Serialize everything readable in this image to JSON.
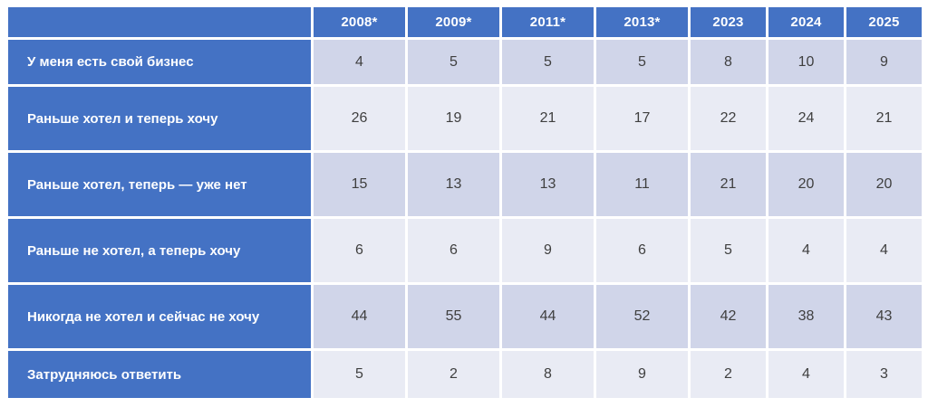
{
  "chart_data": {
    "type": "table",
    "title": "",
    "columns": [
      "2008*",
      "2009*",
      "2011*",
      "2013*",
      "2023",
      "2024",
      "2025"
    ],
    "rows": [
      {
        "label": "У меня есть свой бизнес",
        "values": [
          4,
          5,
          5,
          5,
          8,
          10,
          9
        ]
      },
      {
        "label": "Раньше хотел и теперь хочу",
        "values": [
          26,
          19,
          21,
          17,
          22,
          24,
          21
        ]
      },
      {
        "label": "Раньше хотел, теперь — уже нет",
        "values": [
          15,
          13,
          13,
          11,
          21,
          20,
          20
        ]
      },
      {
        "label": "Раньше не хотел, а теперь хочу",
        "values": [
          6,
          6,
          9,
          6,
          5,
          4,
          4
        ]
      },
      {
        "label": "Никогда не хотел и сейчас не хочу",
        "values": [
          44,
          55,
          44,
          52,
          42,
          38,
          43
        ]
      },
      {
        "label": "Затрудняюсь ответить",
        "values": [
          5,
          2,
          8,
          9,
          2,
          4,
          3
        ]
      }
    ],
    "layout": {
      "header_position": "top",
      "row_labels_position": "left",
      "banding": "alternating rows starting dark",
      "grid": "white gaps between cells"
    }
  },
  "colors": {
    "header_bg": "#4472C4",
    "band_dark": "#D0D5E9",
    "band_light": "#E9EBF4",
    "header_text": "#FFFFFF",
    "cell_text": "#3F3F3F"
  }
}
